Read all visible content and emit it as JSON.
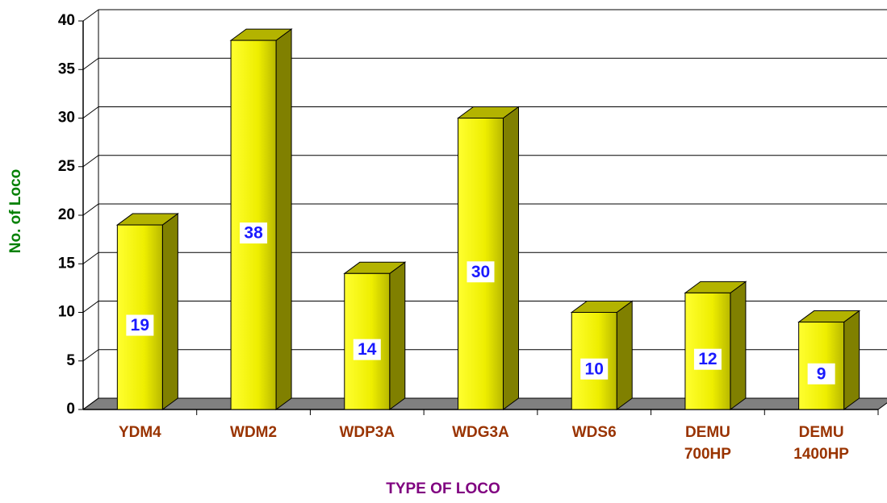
{
  "chart_data": {
    "type": "bar",
    "xlabel": "TYPE OF LOCO",
    "ylabel": "No. of Loco",
    "categories": [
      "YDM4",
      "WDM2",
      "WDP3A",
      "WDG3A",
      "WDS6",
      "DEMU 700HP",
      "DEMU 1400HP"
    ],
    "values": [
      19,
      38,
      14,
      30,
      10,
      12,
      9
    ],
    "color": "#ffff00",
    "ylim": [
      0,
      40
    ],
    "yticks": [
      0,
      5,
      10,
      15,
      20,
      25,
      30,
      35,
      40
    ],
    "grid": true
  }
}
